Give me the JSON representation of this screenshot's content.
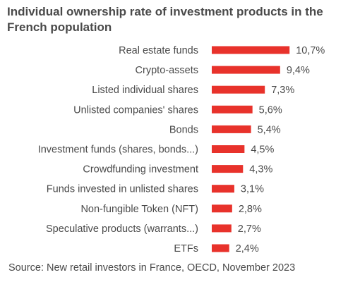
{
  "chart_data": {
    "type": "bar",
    "orientation": "horizontal",
    "title": "Individual ownership rate of investment products in the French population",
    "categories": [
      "Real estate funds",
      "Crypto-assets",
      "Listed individual shares",
      "Unlisted companies' shares",
      "Bonds",
      "Investment funds (shares, bonds...)",
      "Crowdfunding investment",
      "Funds invested in unlisted shares",
      "Non-fungible Token (NFT)",
      "Speculative products (warrants...)",
      "ETFs"
    ],
    "values": [
      10.7,
      9.4,
      7.3,
      5.6,
      5.4,
      4.5,
      4.3,
      3.1,
      2.8,
      2.7,
      2.4
    ],
    "value_labels": [
      "10,7%",
      "9,4%",
      "7,3%",
      "5,6%",
      "5,4%",
      "4,5%",
      "4,3%",
      "3,1%",
      "2,8%",
      "2,7%",
      "2,4%"
    ],
    "unit": "%",
    "bar_color": "#e8322b",
    "grid": false,
    "legend": "none"
  },
  "source": "Source: New retail investors in France, OECD, November 2023",
  "colors": {
    "bar": "#e8322b",
    "text": "#4a4a4a"
  }
}
